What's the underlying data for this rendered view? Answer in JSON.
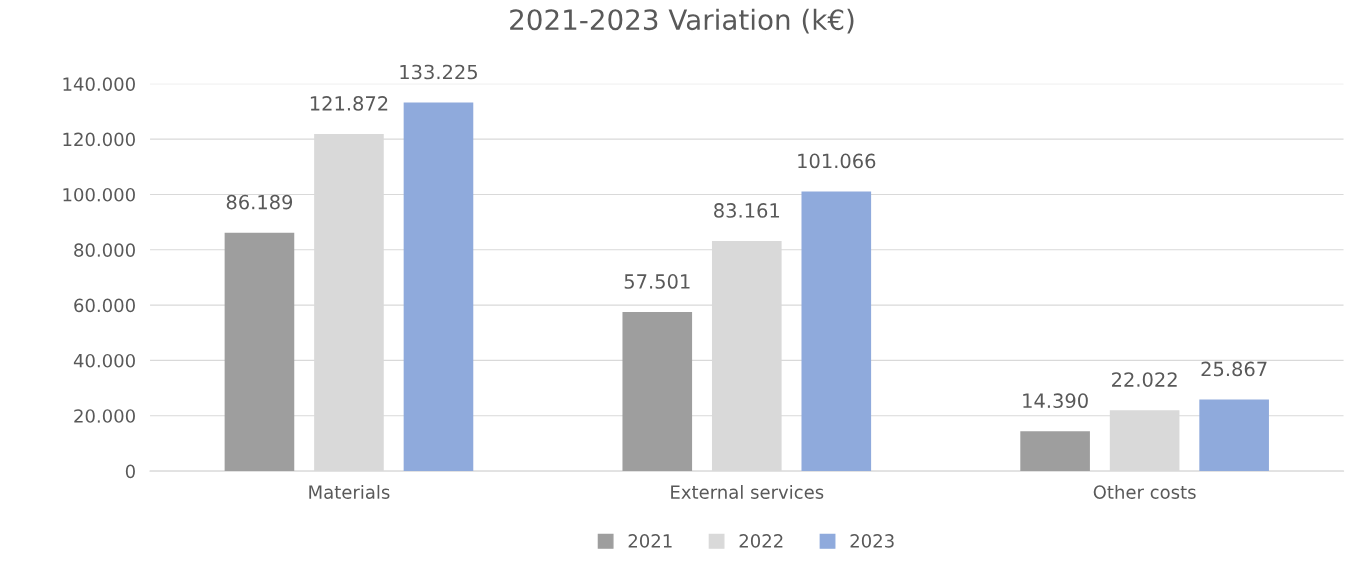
{
  "chart_data": {
    "type": "bar",
    "title": "2021-2023 Variation (k€)",
    "categories": [
      "Materials",
      "External services",
      "Other costs"
    ],
    "series": [
      {
        "name": "2021",
        "color": "#9e9e9e",
        "values": [
          86189,
          57501,
          14390
        ],
        "value_labels": [
          "86.189",
          "57.501",
          "14.390"
        ]
      },
      {
        "name": "2022",
        "color": "#d9d9d9",
        "values": [
          121872,
          83161,
          22022
        ],
        "value_labels": [
          "121.872",
          "83.161",
          "22.022"
        ]
      },
      {
        "name": "2023",
        "color": "#8faadc",
        "values": [
          133225,
          101066,
          25867
        ],
        "value_labels": [
          "133.225",
          "101.066",
          "25.867"
        ]
      }
    ],
    "ylim": [
      0,
      140000
    ],
    "yticks": [
      {
        "value": 0,
        "label": "0"
      },
      {
        "value": 20000,
        "label": "20.000"
      },
      {
        "value": 40000,
        "label": "40.000"
      },
      {
        "value": 60000,
        "label": "60.000"
      },
      {
        "value": 80000,
        "label": "80.000"
      },
      {
        "value": 100000,
        "label": "100.000"
      },
      {
        "value": 120000,
        "label": "120.000"
      },
      {
        "value": 140000,
        "label": "140.000"
      }
    ],
    "grid": "y",
    "legend": "bottom"
  }
}
